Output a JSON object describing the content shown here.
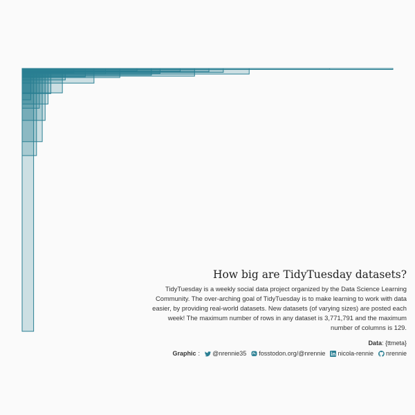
{
  "chart_data": {
    "type": "nested-rectangles",
    "title": "How big are TidyTuesday datasets?",
    "subtitle": "TidyTuesday is a weekly social data project organized by the Data Science Learning Community. The over-arching goal of TidyTuesday is to make learning to work with data easier, by providing real-world datasets. New datasets (of varying sizes) are posted each week! The maximum number of rows in any dataset is 3,771,791 and the maximum number of columns is 129.",
    "max_rows": 3771791,
    "max_columns": 129,
    "datasets": [
      {
        "columns": 129,
        "rows": 5000
      },
      {
        "columns": 107,
        "rows": 9000
      },
      {
        "columns": 79,
        "rows": 80000
      },
      {
        "columns": 70,
        "rows": 56000
      },
      {
        "columns": 65,
        "rows": 48000
      },
      {
        "columns": 60,
        "rows": 110000
      },
      {
        "columns": 55,
        "rows": 42000
      },
      {
        "columns": 48,
        "rows": 70000
      },
      {
        "columns": 45,
        "rows": 95000
      },
      {
        "columns": 40,
        "rows": 35000
      },
      {
        "columns": 34,
        "rows": 130000
      },
      {
        "columns": 29,
        "rows": 80000
      },
      {
        "columns": 25,
        "rows": 210000
      },
      {
        "columns": 22,
        "rows": 118000
      },
      {
        "columns": 18,
        "rows": 62000
      },
      {
        "columns": 15,
        "rows": 165000
      },
      {
        "columns": 14,
        "rows": 350000
      },
      {
        "columns": 10,
        "rows": 360000
      },
      {
        "columns": 9,
        "rows": 510000
      },
      {
        "columns": 8,
        "rows": 745000
      },
      {
        "columns": 7,
        "rows": 1050000
      },
      {
        "columns": 6,
        "rows": 570000
      },
      {
        "columns": 5,
        "rows": 1250000
      },
      {
        "columns": 4,
        "rows": 3771791
      },
      {
        "columns": 3,
        "rows": 450000
      }
    ],
    "fill_color": "#2a7f93",
    "stroke_color": "#2a7f93"
  },
  "caption": {
    "data_label": "Data",
    "data_source": "{ttmeta}",
    "graphic_label": "Graphic",
    "credits": [
      {
        "icon": "twitter-icon",
        "text": "@nrennie35"
      },
      {
        "icon": "mastodon-icon",
        "text": "fosstodon.org/@nrennie"
      },
      {
        "icon": "linkedin-icon",
        "text": "nicola-rennie"
      },
      {
        "icon": "github-icon",
        "text": "nrennie"
      }
    ]
  }
}
